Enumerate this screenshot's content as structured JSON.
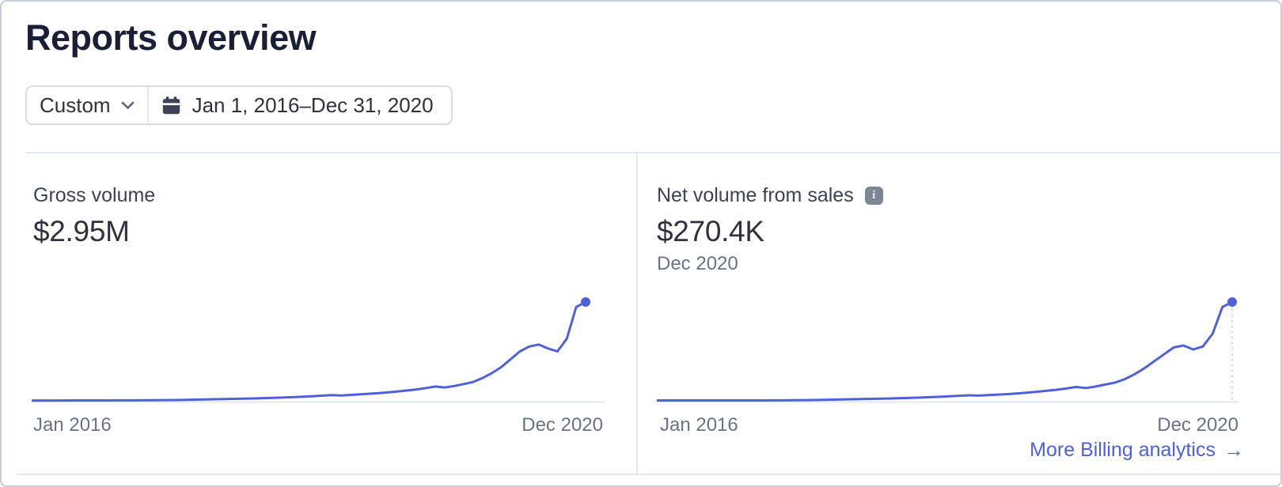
{
  "header": {
    "title": "Reports overview",
    "range_preset": "Custom",
    "date_range": "Jan 1, 2016–Dec 31, 2020"
  },
  "colors": {
    "line": "#5061d8",
    "link": "#4c5fe0",
    "axis_line": "#e3e8ee",
    "drop_line": "#c9d0da",
    "muted_text": "#687385",
    "dark_text": "#30313d",
    "title_text": "#1a1f36"
  },
  "chart_data": [
    {
      "type": "line",
      "id": "gross_volume",
      "label": "Gross volume",
      "value": "$2.95M",
      "x_left": "Jan 2016",
      "x_right": "Dec 2020",
      "x_range": [
        "Jan 2016",
        "Dec 2020"
      ],
      "end_dot": true,
      "drop_line": false,
      "series": [
        0.003,
        0.003,
        0.003,
        0.003,
        0.004,
        0.004,
        0.004,
        0.004,
        0.004,
        0.005,
        0.005,
        0.005,
        0.006,
        0.006,
        0.007,
        0.008,
        0.009,
        0.011,
        0.013,
        0.015,
        0.017,
        0.019,
        0.021,
        0.023,
        0.025,
        0.028,
        0.031,
        0.034,
        0.038,
        0.042,
        0.047,
        0.053,
        0.058,
        0.054,
        0.06,
        0.066,
        0.072,
        0.078,
        0.086,
        0.095,
        0.105,
        0.115,
        0.13,
        0.145,
        0.135,
        0.15,
        0.17,
        0.19,
        0.23,
        0.28,
        0.34,
        0.42,
        0.5,
        0.55,
        0.57,
        0.53,
        0.5,
        0.63,
        0.95,
        1.0
      ]
    },
    {
      "type": "line",
      "id": "net_volume_from_sales",
      "label": "Net volume from sales",
      "info_icon": "i",
      "value": "$270.4K",
      "subtitle": "Dec 2020",
      "x_left": "Jan 2016",
      "x_right": "Dec 2020",
      "x_range": [
        "Jan 2016",
        "Dec 2020"
      ],
      "end_dot": true,
      "drop_line": true,
      "footer_link": {
        "label": "More Billing analytics",
        "arrow": "→"
      },
      "series": [
        0.004,
        0.004,
        0.004,
        0.004,
        0.004,
        0.004,
        0.004,
        0.004,
        0.004,
        0.004,
        0.004,
        0.004,
        0.005,
        0.005,
        0.006,
        0.007,
        0.008,
        0.01,
        0.012,
        0.014,
        0.016,
        0.018,
        0.02,
        0.022,
        0.024,
        0.027,
        0.03,
        0.033,
        0.037,
        0.041,
        0.046,
        0.051,
        0.056,
        0.053,
        0.058,
        0.063,
        0.068,
        0.075,
        0.083,
        0.092,
        0.102,
        0.112,
        0.125,
        0.14,
        0.13,
        0.145,
        0.165,
        0.185,
        0.22,
        0.27,
        0.33,
        0.4,
        0.47,
        0.54,
        0.56,
        0.52,
        0.55,
        0.68,
        0.95,
        1.0
      ]
    }
  ]
}
